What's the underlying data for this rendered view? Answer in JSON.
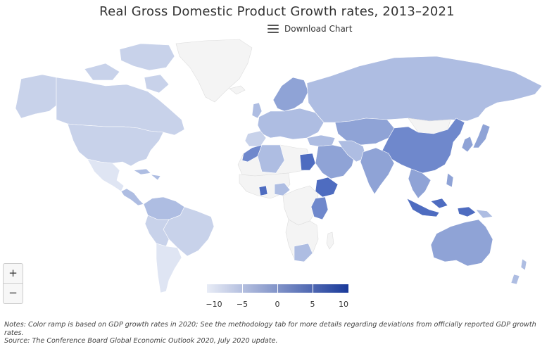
{
  "title": "Real Gross Domestic Product Growth rates, 2013–2021",
  "download_label": "Download Chart",
  "zoom": {
    "in": "+",
    "out": "−"
  },
  "legend": {
    "ticks": [
      "−10",
      "−5",
      "0",
      "5",
      "10"
    ],
    "min_color": "#e8ecf6",
    "max_color": "#1a3a9a"
  },
  "notes": {
    "line1": "Notes: Color ramp is based on GDP growth rates in 2020; See the methodology tab for more details regarding deviations from officially reported GDP growth rates.",
    "line2": "Source: The Conference Board Global Economic Outlook 2020, July 2020 update."
  },
  "colors": {
    "no_data": "#f4f4f4",
    "light": "#c8d2ea",
    "medium_light": "#aebde2",
    "medium": "#8fa3d6",
    "medium_dark": "#6f88cc",
    "dark": "#4e6cc0",
    "border": "#ffffff"
  }
}
